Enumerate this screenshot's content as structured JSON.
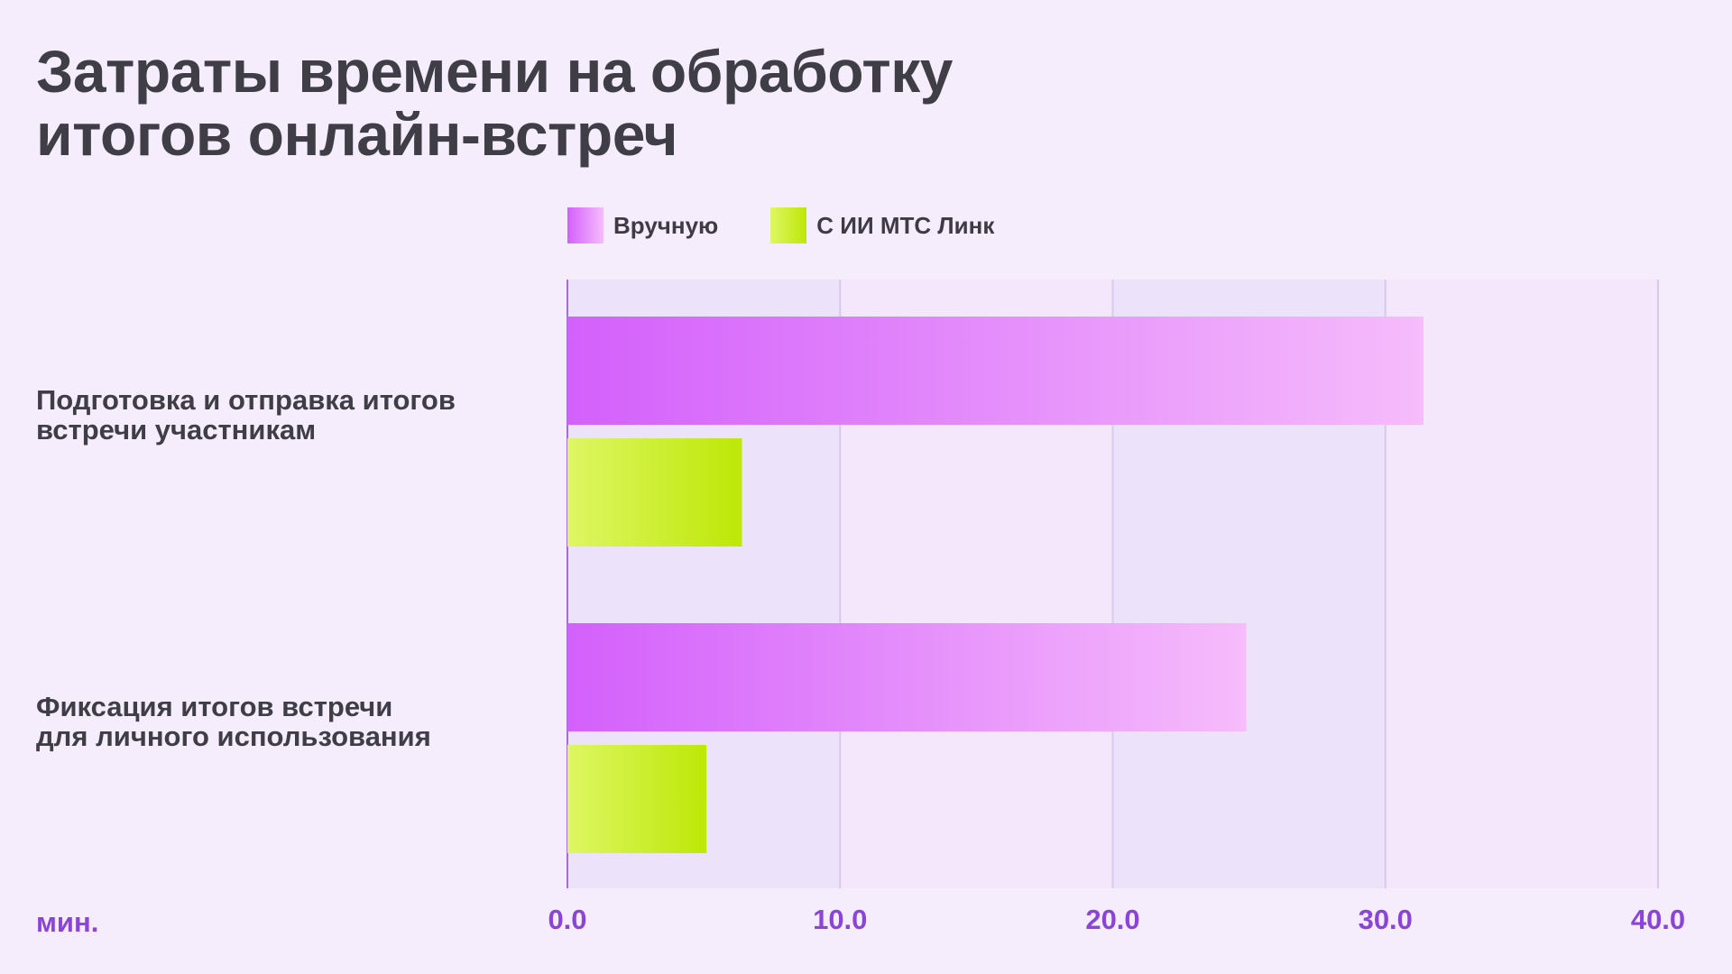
{
  "title": {
    "line1": "Затраты времени на обработку",
    "line2": "итогов онлайн-встреч"
  },
  "legend": [
    {
      "label": "Вручную"
    },
    {
      "label": "С ИИ МТС Линк"
    }
  ],
  "categories": [
    {
      "line1": "Подготовка и отправка итогов",
      "line2": "встречи участникам"
    },
    {
      "line1": "Фиксация итогов встречи",
      "line2": "для личного использования"
    }
  ],
  "unit_label": "мин.",
  "colors": {
    "manual_start": "#d360fb",
    "manual_end": "#f6bcfb",
    "ai_start": "#def664",
    "ai_end": "#bde806",
    "axis_text": "#8a45d8",
    "title_text": "#3f3d45",
    "background": "#f5ecfc"
  },
  "chart_data": {
    "type": "bar",
    "orientation": "horizontal",
    "title": "Затраты времени на обработку итогов онлайн-встреч",
    "categories": [
      "Подготовка и отправка итогов встречи участникам",
      "Фиксация итогов встречи для личного использования"
    ],
    "series": [
      {
        "name": "Вручную",
        "values": [
          31.4,
          24.9
        ]
      },
      {
        "name": "С ИИ МТС Линк",
        "values": [
          6.4,
          5.1
        ]
      }
    ],
    "xlabel": "мин.",
    "xlim": [
      0,
      40
    ],
    "xticks": [
      "0.0",
      "10.0",
      "20.0",
      "30.0",
      "40.0"
    ],
    "grid": true,
    "legend_position": "top"
  }
}
